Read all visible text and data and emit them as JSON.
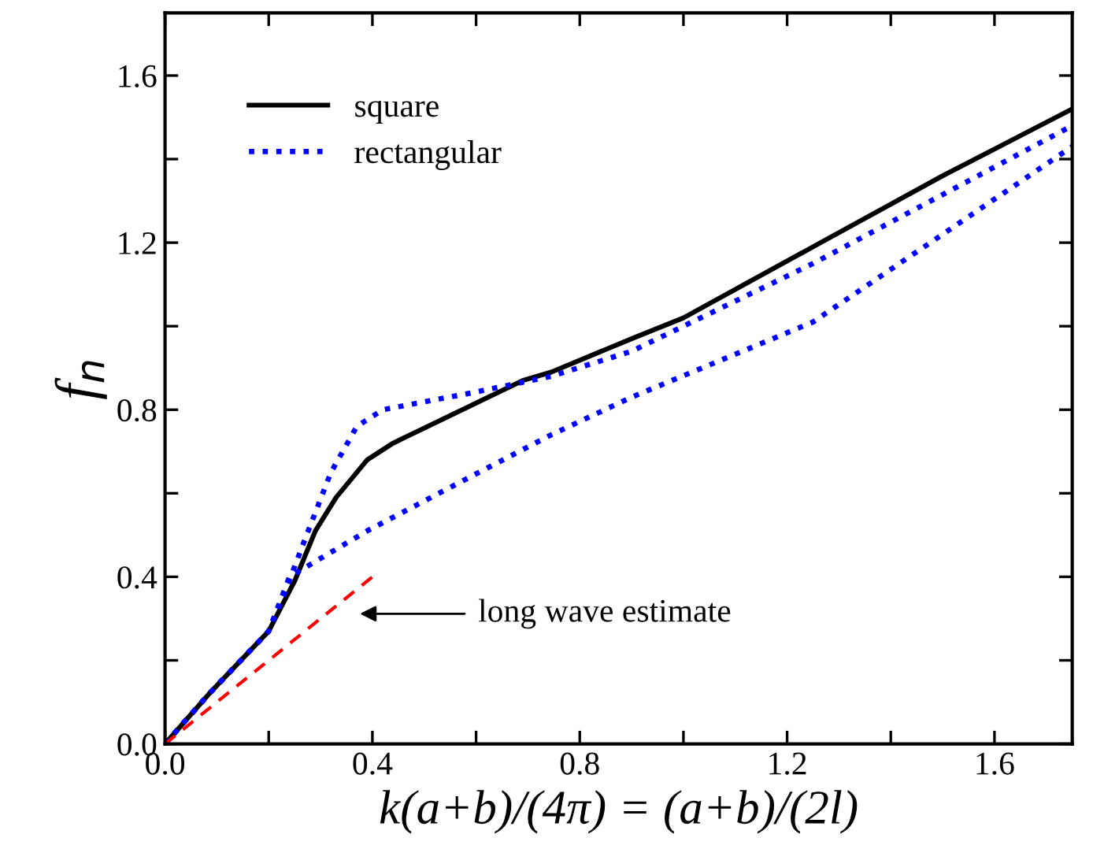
{
  "chart_data": {
    "type": "line",
    "xlabel": "k(a+b)/(4π) = (a+b)/(2l)",
    "ylabel": "f$_{n}$",
    "xlim": [
      0,
      1.75
    ],
    "ylim": [
      0,
      1.75
    ],
    "xticks": [
      {
        "value": 0,
        "label": "0.0"
      },
      {
        "value": 0.2,
        "label": null
      },
      {
        "value": 0.4,
        "label": "0.4"
      },
      {
        "value": 0.6,
        "label": null
      },
      {
        "value": 0.8,
        "label": "0.8"
      },
      {
        "value": 1.0,
        "label": null
      },
      {
        "value": 1.2,
        "label": "1.2"
      },
      {
        "value": 1.4,
        "label": null
      },
      {
        "value": 1.6,
        "label": "1.6"
      }
    ],
    "yticks": [
      {
        "value": 0,
        "label": "0.0"
      },
      {
        "value": 0.2,
        "label": null
      },
      {
        "value": 0.4,
        "label": "0.4"
      },
      {
        "value": 0.6,
        "label": null
      },
      {
        "value": 0.8,
        "label": "0.8"
      },
      {
        "value": 1.0,
        "label": null
      },
      {
        "value": 1.2,
        "label": "1.2"
      },
      {
        "value": 1.4,
        "label": null
      },
      {
        "value": 1.6,
        "label": "1.6"
      }
    ],
    "grid": false,
    "legend": "top left",
    "series": [
      {
        "name": "square",
        "color": "#000000",
        "line_style": "solid",
        "x": [
          0,
          0.085,
          0.2,
          0.25,
          0.29,
          0.33,
          0.39,
          0.44,
          0.49,
          0.59,
          0.69,
          0.745,
          0.9,
          1.0,
          1.25,
          1.5,
          1.75
        ],
        "values": [
          0,
          0.12,
          0.27,
          0.39,
          0.51,
          0.59,
          0.68,
          0.72,
          0.75,
          0.81,
          0.87,
          0.89,
          0.97,
          1.02,
          1.19,
          1.36,
          1.52
        ]
      },
      {
        "name": "rectangular",
        "color": "#0000ff",
        "line_style": "dotted",
        "x": [
          0,
          0.085,
          0.2,
          0.23,
          0.27,
          0.32,
          0.37,
          0.42,
          0.59,
          0.745,
          0.9,
          1.25,
          1.75
        ],
        "values": [
          0,
          0.12,
          0.27,
          0.36,
          0.49,
          0.65,
          0.76,
          0.8,
          0.84,
          0.88,
          0.94,
          1.15,
          1.48
        ]
      },
      {
        "color": "#0000ff",
        "line_style": "dotted",
        "x": [
          0,
          0.085,
          0.2,
          0.24,
          0.39,
          0.59,
          0.745,
          0.9,
          1.25,
          1.75
        ],
        "values": [
          0,
          0.12,
          0.27,
          0.4,
          0.51,
          0.64,
          0.74,
          0.83,
          1.01,
          1.43
        ]
      },
      {
        "color": "#ff0000",
        "line_style": "dashed",
        "x": [
          0,
          0.41
        ],
        "values": [
          0,
          0.41
        ]
      }
    ],
    "annotations": [
      "long wave estimate"
    ]
  }
}
